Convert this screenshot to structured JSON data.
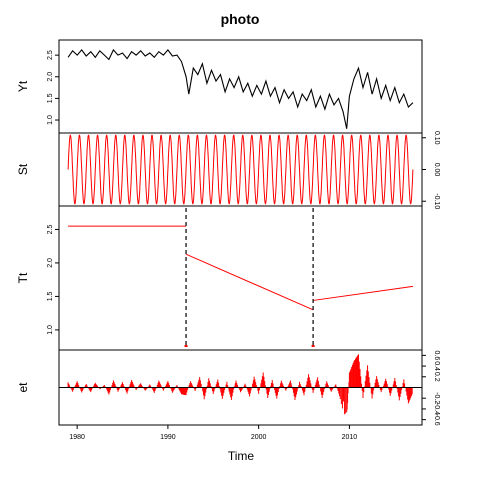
{
  "chart_data": {
    "type": "line",
    "title": "photo",
    "xlabel": "Time",
    "xlim": [
      1978,
      2018
    ],
    "x_ticks": [
      1980,
      1990,
      2000,
      2010
    ],
    "colors": {
      "series": "#000000",
      "component": "#ff0000",
      "breakpoint": "#000000"
    },
    "breakpoints": [
      1992.0,
      2006.0
    ],
    "panels": [
      {
        "id": "yt",
        "ylabel": "Yt",
        "axis_side": "left",
        "ylim": [
          0.7,
          2.85
        ],
        "ticks": [
          1.0,
          1.5,
          2.0,
          2.5
        ],
        "tick_labels": [
          "1.0",
          "1.5",
          "2.0",
          "2.5"
        ],
        "kind": "line",
        "color": "#000000",
        "series": [
          {
            "x": 1979.0,
            "y": 2.45
          },
          {
            "x": 1979.5,
            "y": 2.6
          },
          {
            "x": 1980.0,
            "y": 2.5
          },
          {
            "x": 1980.5,
            "y": 2.62
          },
          {
            "x": 1981.0,
            "y": 2.48
          },
          {
            "x": 1981.5,
            "y": 2.58
          },
          {
            "x": 1982.0,
            "y": 2.45
          },
          {
            "x": 1982.5,
            "y": 2.6
          },
          {
            "x": 1983.0,
            "y": 2.5
          },
          {
            "x": 1983.5,
            "y": 2.4
          },
          {
            "x": 1984.0,
            "y": 2.62
          },
          {
            "x": 1984.5,
            "y": 2.5
          },
          {
            "x": 1985.0,
            "y": 2.55
          },
          {
            "x": 1985.5,
            "y": 2.42
          },
          {
            "x": 1986.0,
            "y": 2.58
          },
          {
            "x": 1986.5,
            "y": 2.5
          },
          {
            "x": 1987.0,
            "y": 2.6
          },
          {
            "x": 1987.5,
            "y": 2.48
          },
          {
            "x": 1988.0,
            "y": 2.55
          },
          {
            "x": 1988.5,
            "y": 2.45
          },
          {
            "x": 1989.0,
            "y": 2.58
          },
          {
            "x": 1989.5,
            "y": 2.5
          },
          {
            "x": 1990.0,
            "y": 2.62
          },
          {
            "x": 1990.5,
            "y": 2.48
          },
          {
            "x": 1991.0,
            "y": 2.5
          },
          {
            "x": 1991.5,
            "y": 2.35
          },
          {
            "x": 1992.0,
            "y": 2.0
          },
          {
            "x": 1992.3,
            "y": 1.6
          },
          {
            "x": 1992.8,
            "y": 2.2
          },
          {
            "x": 1993.3,
            "y": 2.05
          },
          {
            "x": 1993.8,
            "y": 2.3
          },
          {
            "x": 1994.3,
            "y": 1.85
          },
          {
            "x": 1994.8,
            "y": 2.15
          },
          {
            "x": 1995.3,
            "y": 1.9
          },
          {
            "x": 1995.8,
            "y": 2.05
          },
          {
            "x": 1996.3,
            "y": 1.65
          },
          {
            "x": 1996.8,
            "y": 1.95
          },
          {
            "x": 1997.3,
            "y": 1.75
          },
          {
            "x": 1997.8,
            "y": 2.0
          },
          {
            "x": 1998.3,
            "y": 1.65
          },
          {
            "x": 1998.8,
            "y": 1.85
          },
          {
            "x": 1999.3,
            "y": 1.55
          },
          {
            "x": 1999.8,
            "y": 1.8
          },
          {
            "x": 2000.3,
            "y": 1.6
          },
          {
            "x": 2000.8,
            "y": 1.9
          },
          {
            "x": 2001.3,
            "y": 1.55
          },
          {
            "x": 2001.8,
            "y": 1.75
          },
          {
            "x": 2002.3,
            "y": 1.4
          },
          {
            "x": 2002.8,
            "y": 1.7
          },
          {
            "x": 2003.3,
            "y": 1.5
          },
          {
            "x": 2003.8,
            "y": 1.65
          },
          {
            "x": 2004.3,
            "y": 1.3
          },
          {
            "x": 2004.8,
            "y": 1.6
          },
          {
            "x": 2005.3,
            "y": 1.45
          },
          {
            "x": 2005.8,
            "y": 1.7
          },
          {
            "x": 2006.3,
            "y": 1.3
          },
          {
            "x": 2006.8,
            "y": 1.55
          },
          {
            "x": 2007.3,
            "y": 1.25
          },
          {
            "x": 2007.8,
            "y": 1.6
          },
          {
            "x": 2008.3,
            "y": 1.35
          },
          {
            "x": 2008.8,
            "y": 1.5
          },
          {
            "x": 2009.3,
            "y": 1.2
          },
          {
            "x": 2009.7,
            "y": 0.8
          },
          {
            "x": 2010.0,
            "y": 1.55
          },
          {
            "x": 2010.5,
            "y": 1.95
          },
          {
            "x": 2011.0,
            "y": 2.2
          },
          {
            "x": 2011.5,
            "y": 1.75
          },
          {
            "x": 2012.0,
            "y": 2.1
          },
          {
            "x": 2012.5,
            "y": 1.6
          },
          {
            "x": 2013.0,
            "y": 1.95
          },
          {
            "x": 2013.5,
            "y": 1.5
          },
          {
            "x": 2014.0,
            "y": 1.8
          },
          {
            "x": 2014.5,
            "y": 1.45
          },
          {
            "x": 2015.0,
            "y": 1.75
          },
          {
            "x": 2015.5,
            "y": 1.4
          },
          {
            "x": 2016.0,
            "y": 1.6
          },
          {
            "x": 2016.5,
            "y": 1.3
          },
          {
            "x": 2017.0,
            "y": 1.4
          }
        ]
      },
      {
        "id": "st",
        "ylabel": "St",
        "axis_side": "right",
        "ylim": [
          -0.115,
          0.115
        ],
        "ticks": [
          -0.1,
          0.0,
          0.1
        ],
        "tick_labels": [
          "-0.10",
          "0.00",
          "0.10"
        ],
        "kind": "seasonal",
        "color": "#ff0000",
        "seasonal": {
          "start": 1979.0,
          "end": 2017.0,
          "period": 1.0,
          "amplitude": 0.108
        }
      },
      {
        "id": "tt",
        "ylabel": "Tt",
        "axis_side": "left",
        "ylim": [
          0.7,
          2.85
        ],
        "ticks": [
          1.0,
          1.5,
          2.0,
          2.5
        ],
        "tick_labels": [
          "1.0",
          "1.5",
          "2.0",
          "2.5"
        ],
        "kind": "segments",
        "color": "#ff0000",
        "segments": [
          [
            {
              "x": 1979.0,
              "y": 2.55
            },
            {
              "x": 1992.0,
              "y": 2.55
            }
          ],
          [
            {
              "x": 1992.0,
              "y": 2.13
            },
            {
              "x": 2006.0,
              "y": 1.3
            }
          ],
          [
            {
              "x": 2006.0,
              "y": 1.44
            },
            {
              "x": 2017.0,
              "y": 1.65
            }
          ]
        ]
      },
      {
        "id": "et",
        "ylabel": "et",
        "axis_side": "right",
        "ylim": [
          -0.7,
          0.7
        ],
        "ticks": [
          -0.6,
          -0.4,
          -0.2,
          0.2,
          0.4,
          0.6
        ],
        "tick_labels": [
          "-0.6",
          "-0.4",
          "-0.2",
          "0.2",
          "0.4",
          "0.6"
        ],
        "kind": "residuals",
        "color": "#ff0000",
        "residuals": [
          {
            "x": 1979.0,
            "y": 0.1
          },
          {
            "x": 1979.5,
            "y": -0.08
          },
          {
            "x": 1980.0,
            "y": 0.12
          },
          {
            "x": 1980.5,
            "y": -0.1
          },
          {
            "x": 1981.0,
            "y": 0.08
          },
          {
            "x": 1981.5,
            "y": -0.12
          },
          {
            "x": 1982.0,
            "y": 0.15
          },
          {
            "x": 1982.5,
            "y": -0.05
          },
          {
            "x": 1983.0,
            "y": 0.06
          },
          {
            "x": 1983.5,
            "y": -0.15
          },
          {
            "x": 1984.0,
            "y": 0.14
          },
          {
            "x": 1984.5,
            "y": -0.08
          },
          {
            "x": 1985.0,
            "y": 0.1
          },
          {
            "x": 1985.5,
            "y": -0.12
          },
          {
            "x": 1986.0,
            "y": 0.16
          },
          {
            "x": 1986.5,
            "y": -0.06
          },
          {
            "x": 1987.0,
            "y": 0.12
          },
          {
            "x": 1987.5,
            "y": -0.1
          },
          {
            "x": 1988.0,
            "y": 0.08
          },
          {
            "x": 1988.5,
            "y": -0.12
          },
          {
            "x": 1989.0,
            "y": 0.14
          },
          {
            "x": 1989.5,
            "y": -0.06
          },
          {
            "x": 1990.0,
            "y": 0.12
          },
          {
            "x": 1990.5,
            "y": -0.1
          },
          {
            "x": 1991.0,
            "y": 0.05
          },
          {
            "x": 1991.5,
            "y": -0.15
          },
          {
            "x": 1992.0,
            "y": -0.2
          },
          {
            "x": 1992.5,
            "y": 0.2
          },
          {
            "x": 1993.0,
            "y": -0.1
          },
          {
            "x": 1993.5,
            "y": 0.25
          },
          {
            "x": 1994.0,
            "y": -0.25
          },
          {
            "x": 1994.5,
            "y": 0.18
          },
          {
            "x": 1995.0,
            "y": -0.12
          },
          {
            "x": 1995.5,
            "y": 0.15
          },
          {
            "x": 1996.0,
            "y": -0.22
          },
          {
            "x": 1996.5,
            "y": 0.12
          },
          {
            "x": 1997.0,
            "y": -0.3
          },
          {
            "x": 1997.5,
            "y": 0.2
          },
          {
            "x": 1998.0,
            "y": -0.15
          },
          {
            "x": 1998.5,
            "y": 0.1
          },
          {
            "x": 1999.0,
            "y": -0.2
          },
          {
            "x": 1999.5,
            "y": 0.22
          },
          {
            "x": 2000.0,
            "y": -0.12
          },
          {
            "x": 2000.5,
            "y": 0.28
          },
          {
            "x": 2001.0,
            "y": -0.2
          },
          {
            "x": 2001.5,
            "y": 0.15
          },
          {
            "x": 2002.0,
            "y": -0.25
          },
          {
            "x": 2002.5,
            "y": 0.18
          },
          {
            "x": 2003.0,
            "y": -0.1
          },
          {
            "x": 2003.5,
            "y": 0.2
          },
          {
            "x": 2004.0,
            "y": -0.3
          },
          {
            "x": 2004.5,
            "y": 0.12
          },
          {
            "x": 2005.0,
            "y": -0.15
          },
          {
            "x": 2005.5,
            "y": 0.25
          },
          {
            "x": 2006.0,
            "y": -0.1
          },
          {
            "x": 2006.5,
            "y": 0.2
          },
          {
            "x": 2007.0,
            "y": -0.22
          },
          {
            "x": 2007.5,
            "y": 0.15
          },
          {
            "x": 2008.0,
            "y": -0.12
          },
          {
            "x": 2008.5,
            "y": 0.1
          },
          {
            "x": 2009.0,
            "y": -0.3
          },
          {
            "x": 2009.7,
            "y": -0.62
          },
          {
            "x": 2010.0,
            "y": 0.3
          },
          {
            "x": 2010.5,
            "y": 0.5
          },
          {
            "x": 2011.0,
            "y": 0.62
          },
          {
            "x": 2011.5,
            "y": -0.2
          },
          {
            "x": 2012.0,
            "y": 0.45
          },
          {
            "x": 2012.5,
            "y": -0.25
          },
          {
            "x": 2013.0,
            "y": 0.3
          },
          {
            "x": 2013.5,
            "y": -0.15
          },
          {
            "x": 2014.0,
            "y": 0.25
          },
          {
            "x": 2014.5,
            "y": -0.2
          },
          {
            "x": 2015.0,
            "y": 0.2
          },
          {
            "x": 2015.5,
            "y": -0.25
          },
          {
            "x": 2016.0,
            "y": 0.15
          },
          {
            "x": 2016.5,
            "y": -0.3
          },
          {
            "x": 2017.0,
            "y": -0.1
          }
        ]
      }
    ]
  }
}
